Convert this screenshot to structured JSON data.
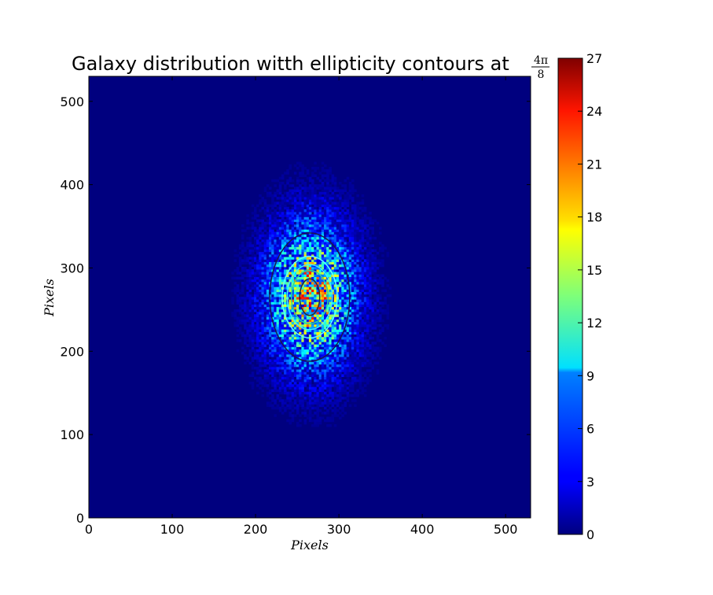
{
  "chart_data": {
    "type": "heatmap",
    "title": "Galaxy distribution witth ellipticity contours at",
    "title_fraction": {
      "numerator": "4π",
      "denominator": "8"
    },
    "xlabel": "Pixels",
    "ylabel": "Pixels",
    "xlim": [
      0,
      530
    ],
    "ylim": [
      0,
      530
    ],
    "xticks": [
      0,
      100,
      200,
      300,
      400,
      500
    ],
    "yticks": [
      0,
      100,
      200,
      300,
      400,
      500
    ],
    "colormap": "jet",
    "colorbar": {
      "range": [
        0,
        27
      ],
      "ticks": [
        0,
        3,
        6,
        9,
        12,
        15,
        18,
        21,
        24,
        27
      ]
    },
    "galaxy": {
      "center": [
        265,
        265
      ],
      "peak_value": 16,
      "sigma_x": 35,
      "sigma_y": 58
    },
    "contours": [
      {
        "color": "#2a2a3a",
        "rx": 12,
        "ry": 22
      },
      {
        "color": "#2ad49a",
        "rx": 22,
        "ry": 32
      },
      {
        "color": "#40f0ff",
        "rx": 27,
        "ry": 39
      },
      {
        "color": "#60ffff",
        "rx": 33,
        "ry": 49
      },
      {
        "color": "#1a1a4a",
        "rx": 48,
        "ry": 77
      }
    ]
  }
}
